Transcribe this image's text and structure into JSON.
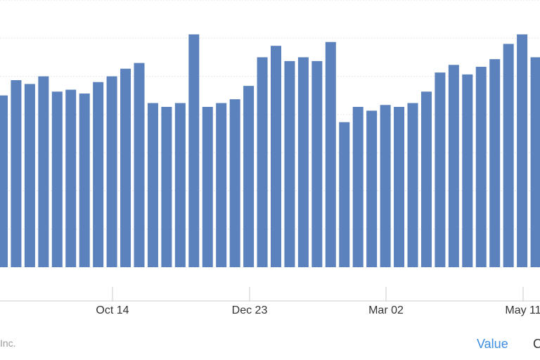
{
  "chart_data": {
    "type": "bar",
    "title": "",
    "xlabel": "",
    "ylabel": "",
    "ylim": [
      0,
      7
    ],
    "grid": true,
    "bar_color": "#5b82bc",
    "tick_labels": [
      "Oct 14",
      "Dec 23",
      "Mar 02",
      "May 11"
    ],
    "values": [
      4.5,
      4.9,
      4.8,
      5.0,
      4.6,
      4.65,
      4.55,
      4.85,
      5.0,
      5.2,
      5.35,
      4.3,
      4.2,
      4.3,
      6.1,
      4.2,
      4.3,
      4.4,
      4.75,
      5.5,
      5.8,
      5.4,
      5.5,
      5.4,
      5.9,
      3.8,
      4.2,
      4.1,
      4.25,
      4.2,
      4.3,
      4.6,
      5.1,
      5.3,
      5.05,
      5.25,
      5.45,
      5.85,
      6.1,
      5.5
    ]
  },
  "footer": {
    "source_text": "Inc.",
    "toggle_value": "Value",
    "toggle_other": "C"
  }
}
